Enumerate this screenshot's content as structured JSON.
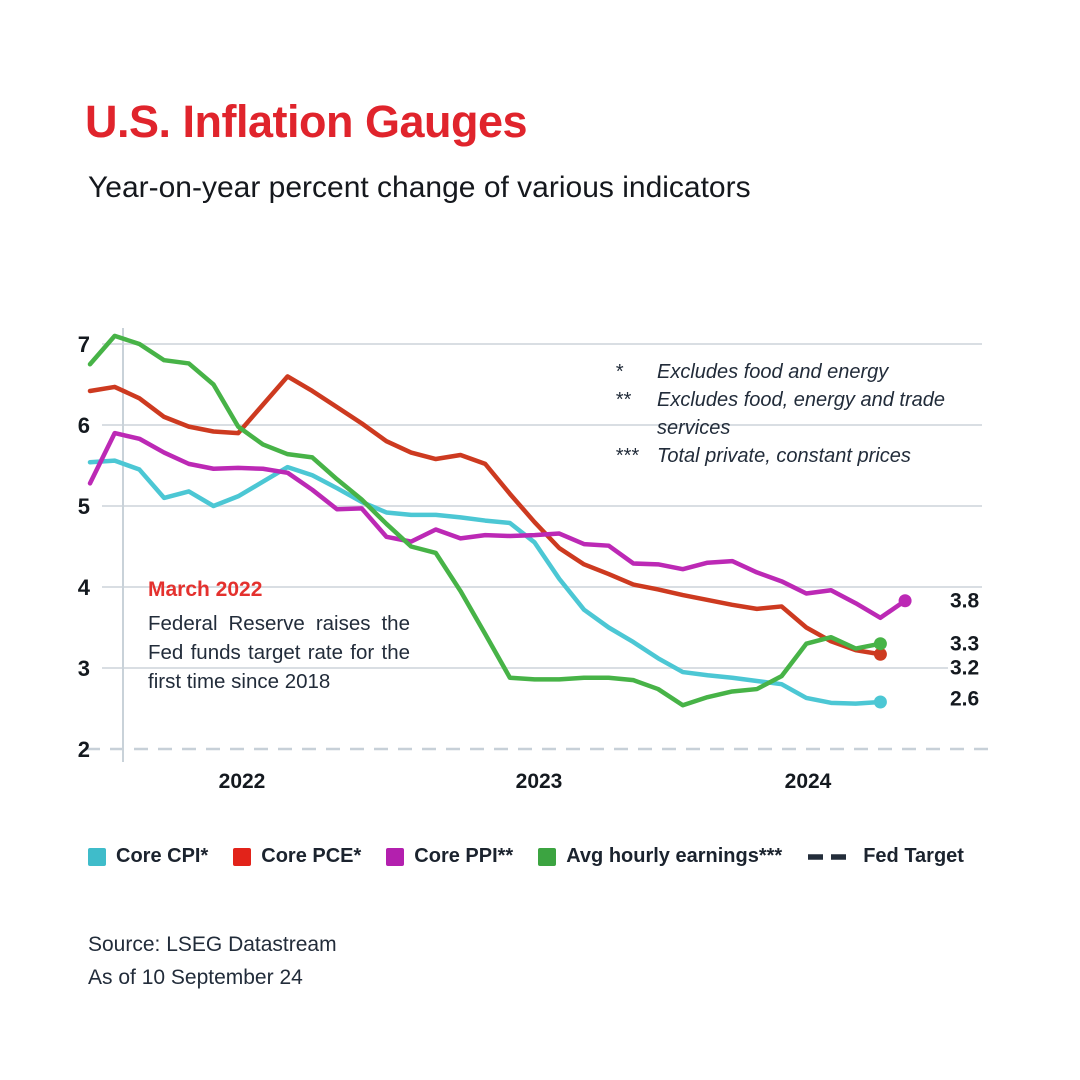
{
  "header": {
    "title": "U.S. Inflation Gauges",
    "subtitle": "Year-on-year percent change of various indicators"
  },
  "footnotes": {
    "items": [
      {
        "marker": "*",
        "text": "Excludes food and energy"
      },
      {
        "marker": "**",
        "text": "Excludes food, energy and trade services"
      },
      {
        "marker": "***",
        "text": "Total private, constant prices"
      }
    ]
  },
  "annotation": {
    "heading": "March 2022",
    "body": "Federal Reserve raises the Fed funds target rate for the first time since 2018"
  },
  "legend": {
    "items": [
      {
        "label": "Core CPI*",
        "color": "#3fbcca",
        "type": "square"
      },
      {
        "label": "Core PCE*",
        "color": "#e2231a",
        "type": "square"
      },
      {
        "label": "Core PPI**",
        "color": "#b320ae",
        "type": "square"
      },
      {
        "label": "Avg hourly earnings***",
        "color": "#3ca441",
        "type": "square"
      },
      {
        "label": "Fed Target",
        "color": "#232d3a",
        "type": "dash"
      }
    ]
  },
  "source": {
    "line1": "Source: LSEG Datastream",
    "line2": "As of 10 September 24"
  },
  "chart_data": {
    "type": "line",
    "title": "U.S. Inflation Gauges",
    "subtitle": "Year-on-year percent change of various indicators",
    "ylabel": "percent change, year on year",
    "ylim": [
      2,
      7.3
    ],
    "grid": "horizontal",
    "y_ticks": [
      7,
      6,
      5,
      4,
      3
    ],
    "fed_target": {
      "value": 2,
      "tick_label": "2",
      "color": "#c7d0d8",
      "style": "dashed"
    },
    "x_year_labels": [
      {
        "label": "2022",
        "x": 242
      },
      {
        "label": "2023",
        "x": 539
      },
      {
        "label": "2024",
        "x": 808
      }
    ],
    "months": [
      "Nov 2021",
      "Dec 2021",
      "Jan 2022",
      "Feb 2022",
      "Mar 2022",
      "Apr 2022",
      "May 2022",
      "Jun 2022",
      "Jul 2022",
      "Aug 2022",
      "Sep 2022",
      "Oct 2022",
      "Nov 2022",
      "Dec 2022",
      "Jan 2023",
      "Feb 2023",
      "Mar 2023",
      "Apr 2023",
      "May 2023",
      "Jun 2023",
      "Jul 2023",
      "Aug 2023",
      "Sep 2023",
      "Oct 2023",
      "Nov 2023",
      "Dec 2023",
      "Jan 2024",
      "Feb 2024",
      "Mar 2024",
      "Apr 2024",
      "May 2024",
      "Jun 2024",
      "Jul 2024",
      "Aug 2024"
    ],
    "series": [
      {
        "name": "Core CPI*",
        "color": "#4cc7d4",
        "values": [
          5.54,
          5.56,
          5.45,
          5.1,
          5.18,
          5.0,
          5.12,
          5.3,
          5.48,
          5.38,
          5.22,
          5.05,
          4.92,
          4.89,
          4.89,
          4.86,
          4.82,
          4.79,
          4.55,
          4.1,
          3.72,
          3.5,
          3.32,
          3.12,
          2.95,
          2.91,
          2.88,
          2.84,
          2.8,
          2.63,
          2.57,
          2.56,
          2.58,
          null
        ]
      },
      {
        "name": "Core PCE*",
        "color": "#cd3a20",
        "values": [
          6.42,
          6.47,
          6.33,
          6.1,
          5.98,
          5.92,
          5.9,
          6.25,
          6.6,
          6.42,
          6.22,
          6.02,
          5.8,
          5.66,
          5.58,
          5.63,
          5.52,
          5.15,
          4.8,
          4.48,
          4.28,
          4.16,
          4.03,
          3.97,
          3.9,
          3.84,
          3.78,
          3.73,
          3.76,
          3.5,
          3.33,
          3.22,
          3.17,
          null
        ]
      },
      {
        "name": "Core PPI**",
        "color": "#bc29b5",
        "values": [
          5.28,
          5.9,
          5.83,
          5.66,
          5.52,
          5.46,
          5.47,
          5.46,
          5.41,
          5.2,
          4.96,
          4.97,
          4.62,
          4.56,
          4.71,
          4.6,
          4.64,
          4.63,
          4.64,
          4.66,
          4.53,
          4.51,
          4.29,
          4.28,
          4.22,
          4.3,
          4.32,
          4.18,
          4.07,
          3.92,
          3.96,
          3.8,
          3.62,
          3.83
        ]
      },
      {
        "name": "Avg hourly earnings***",
        "color": "#47b347",
        "values": [
          6.75,
          7.1,
          7.0,
          6.8,
          6.76,
          6.5,
          5.98,
          5.76,
          5.64,
          5.6,
          5.33,
          5.08,
          4.78,
          4.5,
          4.42,
          3.95,
          3.42,
          2.88,
          2.86,
          2.86,
          2.88,
          2.88,
          2.85,
          2.74,
          2.54,
          2.64,
          2.71,
          2.74,
          2.9,
          3.3,
          3.38,
          3.24,
          3.3,
          null
        ]
      },
      {
        "name": "Fed Target",
        "color": "#c7d0d8",
        "style": "dashed",
        "constant": 2
      }
    ],
    "end_labels": [
      {
        "text": "3.8",
        "v": 3.84
      },
      {
        "text": "3.3",
        "v": 3.31
      },
      {
        "text": "3.2",
        "v": 3.01
      },
      {
        "text": "2.6",
        "v": 2.63
      }
    ]
  }
}
